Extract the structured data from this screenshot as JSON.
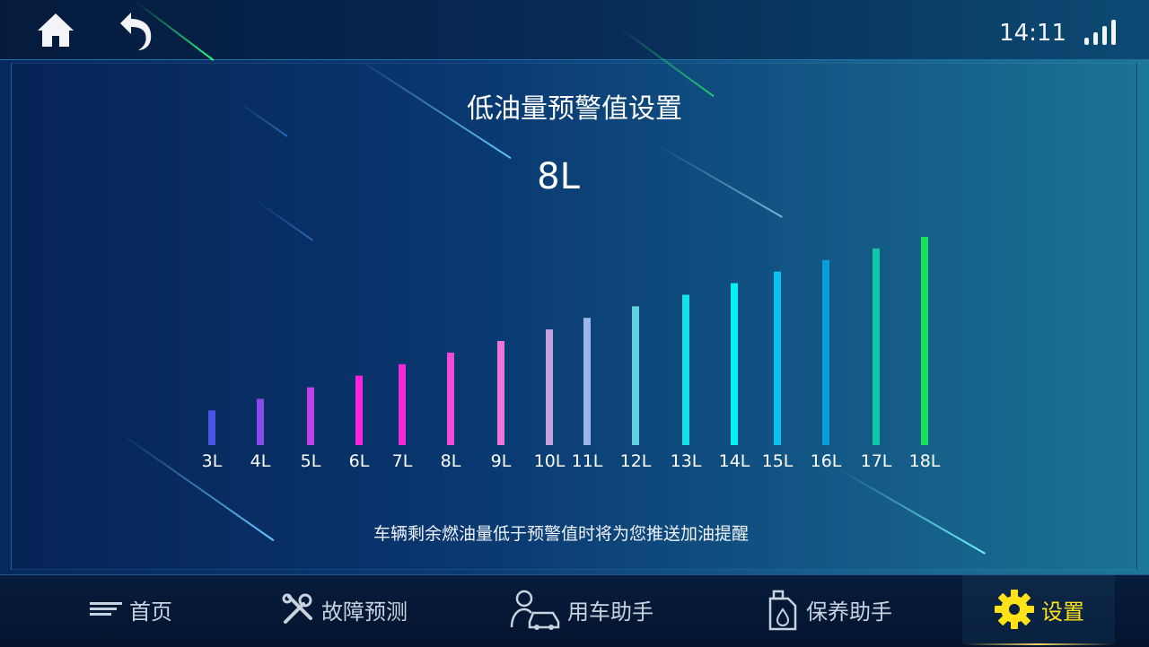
{
  "header": {
    "time": "14:11",
    "icons": {
      "home": "home-icon",
      "back": "back-arrow-icon",
      "signal": "signal-strength-icon"
    }
  },
  "page": {
    "title": "低油量预警值设置",
    "current_value": "8L",
    "hint": "车辆剩余燃油量低于预警值时将为您推送加油提醒"
  },
  "chart_data": {
    "type": "bar",
    "categories": [
      "3L",
      "4L",
      "5L",
      "6L",
      "7L",
      "8L",
      "9L",
      "10L",
      "11L",
      "12L",
      "13L",
      "14L",
      "15L",
      "16L",
      "17L",
      "18L"
    ],
    "values": [
      3,
      4,
      5,
      6,
      7,
      8,
      9,
      10,
      11,
      12,
      13,
      14,
      15,
      16,
      17,
      18
    ],
    "selected": "8L",
    "colors": [
      "#4a55e8",
      "#8a4ae8",
      "#c043e8",
      "#ff22e0",
      "#f22ad8",
      "#ef4bd6",
      "#ea77d6",
      "#c6a0dc",
      "#9ab5e6",
      "#5ed0de",
      "#14e2ea",
      "#08f0f6",
      "#0ac0ee",
      "#0a9ed8",
      "#10c6a8",
      "#18e25a"
    ]
  },
  "nav": {
    "items": [
      {
        "label": "首页",
        "icon": "lines-icon",
        "active": false
      },
      {
        "label": "故障预测",
        "icon": "tools-icon",
        "active": false
      },
      {
        "label": "用车助手",
        "icon": "driver-car-icon",
        "active": false
      },
      {
        "label": "保养助手",
        "icon": "oil-bottle-icon",
        "active": false
      },
      {
        "label": "设置",
        "icon": "gear-icon",
        "active": true
      }
    ]
  },
  "colors": {
    "accent": "#ffe21a",
    "text": "#ffffff",
    "inactive_label": "#c9d3df"
  }
}
